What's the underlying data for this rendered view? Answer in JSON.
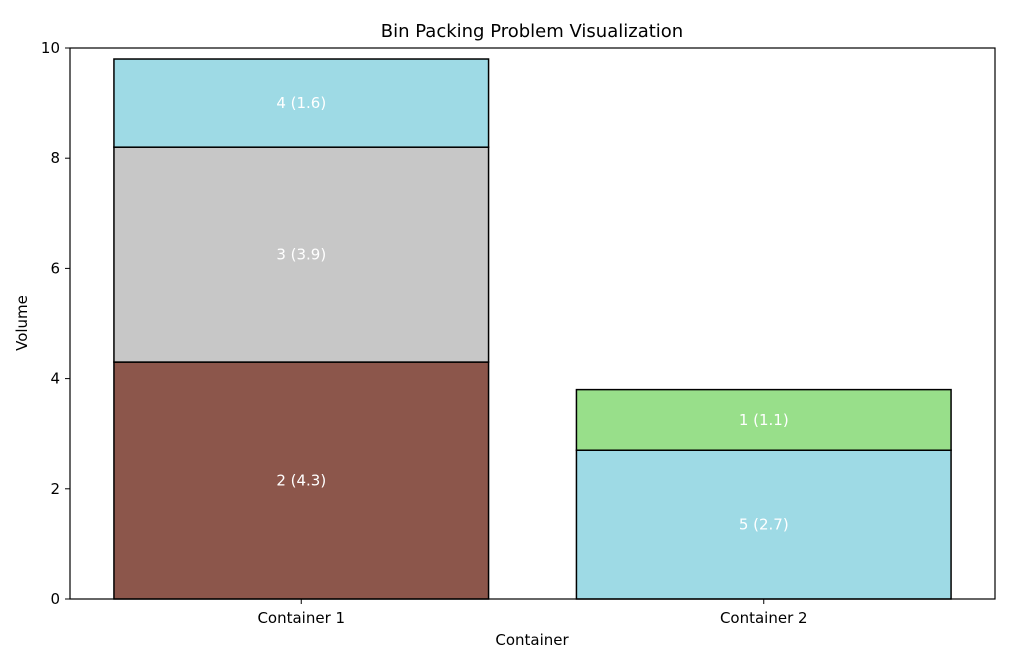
{
  "chart_data": {
    "type": "bar",
    "stacked": true,
    "title": "Bin Packing Problem Visualization",
    "xlabel": "Container",
    "ylabel": "Volume",
    "ylim": [
      0,
      10
    ],
    "yticks": [
      0,
      2,
      4,
      6,
      8,
      10
    ],
    "grid": false,
    "categories": [
      "Container 1",
      "Container 2"
    ],
    "bins": [
      {
        "name": "Container 1",
        "items": [
          {
            "label": "2 (4.3)",
            "value": 4.3,
            "color": "#8c564b"
          },
          {
            "label": "3 (3.9)",
            "value": 3.9,
            "color": "#c7c7c7"
          },
          {
            "label": "4 (1.6)",
            "value": 1.6,
            "color": "#9edae5"
          }
        ]
      },
      {
        "name": "Container 2",
        "items": [
          {
            "label": "5 (2.7)",
            "value": 2.7,
            "color": "#9edae5"
          },
          {
            "label": "1 (1.1)",
            "value": 1.1,
            "color": "#98df8a"
          }
        ]
      }
    ]
  }
}
